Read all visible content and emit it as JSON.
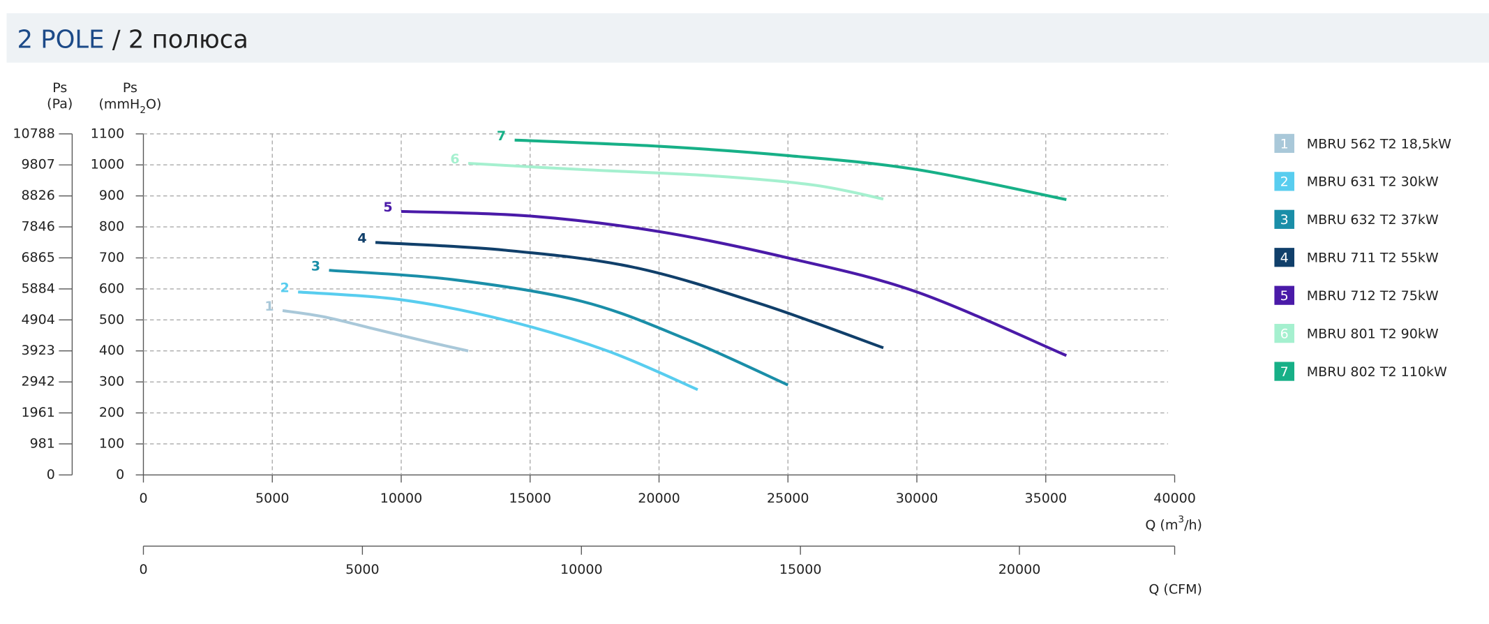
{
  "chart_data": {
    "type": "line",
    "title": [
      "2 POLE",
      " / 2 полюса"
    ],
    "x_label": [
      "Q (m",
      "3",
      "/h)"
    ],
    "x2_label": "Q (CFM)",
    "y_label": [
      "Ps",
      "(mmH",
      "2",
      "O)"
    ],
    "y2_label": [
      "Ps",
      "(Pa)"
    ],
    "xlim": [
      0,
      40000
    ],
    "xticks": [
      0,
      5000,
      10000,
      15000,
      20000,
      25000,
      30000,
      35000,
      40000
    ],
    "x2lim": [
      0,
      23544
    ],
    "x2ticks": [
      0,
      5000,
      10000,
      15000,
      20000
    ],
    "ylim": [
      0,
      1100
    ],
    "yticks": [
      0,
      100,
      200,
      300,
      400,
      500,
      600,
      700,
      800,
      900,
      1000,
      1100
    ],
    "y2lim": [
      0,
      10788
    ],
    "y2ticks": [
      0,
      981,
      1961,
      2942,
      3923,
      4904,
      5884,
      6865,
      7846,
      8826,
      9807,
      10788
    ],
    "grid": true,
    "legend": "right",
    "series": [
      {
        "label": "1",
        "name": "MBRU 562 T2 18,5kW",
        "color": "#a9c8d9",
        "x": [
          5400,
          7000,
          9000,
          11000,
          12600
        ],
        "values": [
          530,
          510,
          470,
          430,
          400
        ]
      },
      {
        "label": "2",
        "name": "MBRU 631 T2 30kW",
        "color": "#58cdef",
        "x": [
          6000,
          10000,
          14000,
          18000,
          21500
        ],
        "values": [
          590,
          565,
          500,
          400,
          275
        ]
      },
      {
        "label": "3",
        "name": "MBRU 632 T2 37kW",
        "color": "#1a8ea8",
        "x": [
          7200,
          12000,
          17000,
          21000,
          25000
        ],
        "values": [
          660,
          630,
          560,
          440,
          290
        ]
      },
      {
        "label": "4",
        "name": "MBRU 711 T2 55kW",
        "color": "#103f6a",
        "x": [
          9000,
          14000,
          19000,
          24000,
          28700
        ],
        "values": [
          750,
          725,
          670,
          550,
          410
        ]
      },
      {
        "label": "5",
        "name": "MBRU 712 T2 75kW",
        "color": "#4a1aa8",
        "x": [
          10000,
          15000,
          20000,
          25000,
          30000,
          35800
        ],
        "values": [
          850,
          835,
          785,
          700,
          590,
          385
        ]
      },
      {
        "label": "6",
        "name": "MBRU 801 T2 90kW",
        "color": "#a5f0cf",
        "x": [
          12600,
          17000,
          22000,
          26000,
          28700
        ],
        "values": [
          1005,
          985,
          965,
          935,
          890
        ]
      },
      {
        "label": "7",
        "name": "MBRU 802 T2 110kW",
        "color": "#17b087",
        "x": [
          14400,
          20000,
          25000,
          30000,
          35800
        ],
        "values": [
          1080,
          1060,
          1030,
          985,
          888
        ]
      }
    ]
  }
}
